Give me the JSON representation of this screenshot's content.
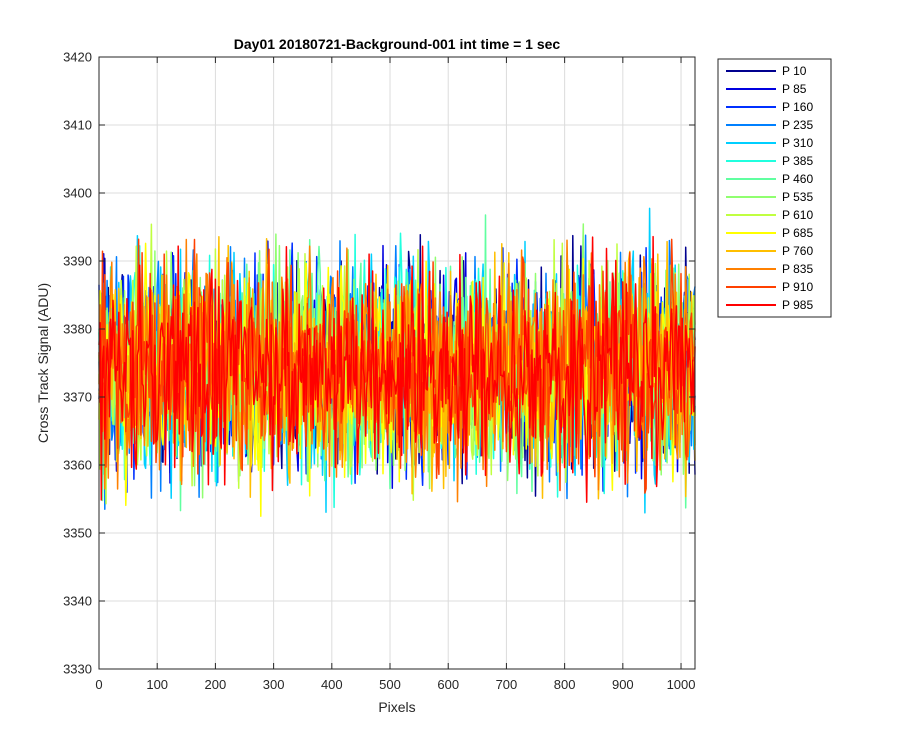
{
  "chart_data": {
    "type": "line",
    "title": "Day01 20180721-Background-001 int time = 1 sec",
    "xlabel": "Pixels",
    "ylabel": "Cross Track Signal (ADU)",
    "xlim": [
      0,
      1024
    ],
    "ylim": [
      3330,
      3420
    ],
    "xticks": [
      0,
      100,
      200,
      300,
      400,
      500,
      600,
      700,
      800,
      900,
      1000
    ],
    "yticks": [
      3330,
      3340,
      3350,
      3360,
      3370,
      3380,
      3390,
      3400,
      3410,
      3420
    ],
    "grid": true,
    "legend_position": "outside-right-top",
    "series": [
      {
        "name": "P 10",
        "color": "#00008f",
        "mean": 3374,
        "spread": 7.5
      },
      {
        "name": "P 85",
        "color": "#0000df",
        "mean": 3374,
        "spread": 7.5
      },
      {
        "name": "P 160",
        "color": "#0030ff",
        "mean": 3374,
        "spread": 7.5
      },
      {
        "name": "P 235",
        "color": "#0080ff",
        "mean": 3374,
        "spread": 7.5
      },
      {
        "name": "P 310",
        "color": "#00cfff",
        "mean": 3374,
        "spread": 7.5
      },
      {
        "name": "P 385",
        "color": "#20ffdf",
        "mean": 3374,
        "spread": 7.5
      },
      {
        "name": "P 460",
        "color": "#60ffa0",
        "mean": 3374,
        "spread": 7.5
      },
      {
        "name": "P 535",
        "color": "#90ff70",
        "mean": 3374,
        "spread": 7.5
      },
      {
        "name": "P 610",
        "color": "#c0ff40",
        "mean": 3374,
        "spread": 7.5
      },
      {
        "name": "P 685",
        "color": "#ffff00",
        "mean": 3374,
        "spread": 7.5
      },
      {
        "name": "P 760",
        "color": "#ffbf00",
        "mean": 3374,
        "spread": 7.5
      },
      {
        "name": "P 835",
        "color": "#ff8000",
        "mean": 3374,
        "spread": 7.5
      },
      {
        "name": "P 910",
        "color": "#ff4000",
        "mean": 3374,
        "spread": 7.5
      },
      {
        "name": "P 985",
        "color": "#ff0000",
        "mean": 3374,
        "spread": 7.5
      }
    ]
  }
}
